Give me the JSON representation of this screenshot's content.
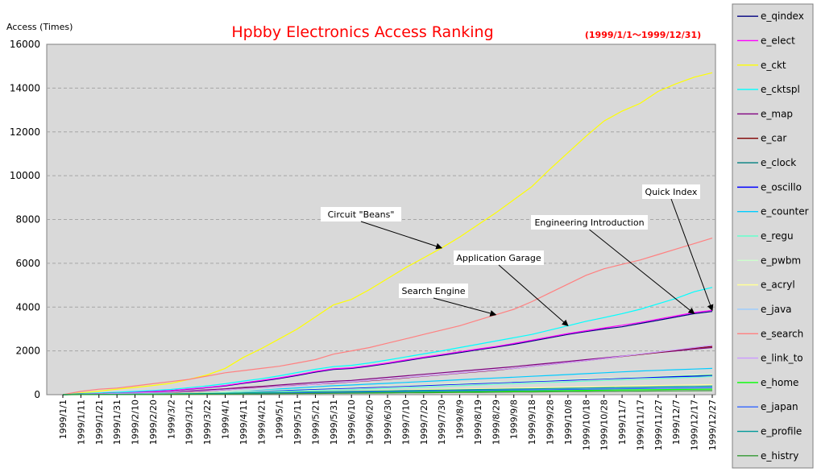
{
  "chart_data": {
    "type": "line",
    "title": "Hpbby Electronics Access Ranking",
    "subtitle": "(1999/1/1～1999/12/31)",
    "ylabel": "Access (Times)",
    "xlabel": "",
    "ylim": [
      0,
      16000
    ],
    "yticks": [
      "0",
      "2000",
      "4000",
      "6000",
      "8000",
      "10000",
      "12000",
      "14000",
      "16000"
    ],
    "grid": true,
    "legend_position": "right",
    "x": [
      "1999/1/1",
      "1999/1/11",
      "1999/1/21",
      "1999/1/31",
      "1999/2/10",
      "1999/2/20",
      "1999/3/2",
      "1999/3/12",
      "1999/3/22",
      "1999/4/1",
      "1999/4/11",
      "1999/4/21",
      "1999/5/1",
      "1999/5/11",
      "1999/5/21",
      "1999/5/31",
      "1999/6/10",
      "1999/6/20",
      "1999/6/30",
      "1999/7/10",
      "1999/7/20",
      "1999/7/30",
      "1999/8/9",
      "1999/8/19",
      "1999/8/29",
      "1999/9/8",
      "1999/9/18",
      "1999/9/28",
      "1999/10/8",
      "1999/10/18",
      "1999/10/28",
      "1999/11/7",
      "1999/11/17",
      "1999/11/27",
      "1999/12/7",
      "1999/12/17",
      "1999/12/27"
    ],
    "series": [
      {
        "name": "e_qindex",
        "color": "#000080",
        "values": [
          0,
          40,
          60,
          80,
          110,
          150,
          190,
          250,
          320,
          400,
          520,
          620,
          740,
          880,
          1030,
          1150,
          1200,
          1300,
          1420,
          1550,
          1680,
          1800,
          1920,
          2050,
          2170,
          2300,
          2450,
          2600,
          2750,
          2880,
          3000,
          3100,
          3250,
          3400,
          3550,
          3700,
          3800
        ]
      },
      {
        "name": "e_elect",
        "color": "#ff00ff",
        "values": [
          0,
          40,
          60,
          80,
          110,
          150,
          190,
          260,
          330,
          420,
          540,
          650,
          770,
          910,
          1060,
          1180,
          1230,
          1330,
          1450,
          1580,
          1710,
          1830,
          1960,
          2080,
          2200,
          2340,
          2490,
          2640,
          2790,
          2920,
          3050,
          3170,
          3300,
          3450,
          3600,
          3750,
          3850
        ]
      },
      {
        "name": "e_ckt",
        "color": "#ffff00",
        "values": [
          0,
          80,
          160,
          250,
          330,
          420,
          520,
          700,
          900,
          1200,
          1700,
          2100,
          2550,
          3000,
          3550,
          4100,
          4350,
          4800,
          5300,
          5800,
          6250,
          6700,
          7200,
          7750,
          8300,
          8900,
          9500,
          10300,
          11050,
          11800,
          12500,
          12950,
          13300,
          13850,
          14200,
          14500,
          14700
        ]
      },
      {
        "name": "e_cktspl",
        "color": "#00ffff",
        "values": [
          0,
          50,
          80,
          110,
          150,
          190,
          240,
          320,
          400,
          500,
          620,
          730,
          860,
          1010,
          1160,
          1280,
          1340,
          1450,
          1580,
          1720,
          1860,
          2000,
          2150,
          2300,
          2450,
          2600,
          2750,
          2950,
          3150,
          3350,
          3520,
          3700,
          3900,
          4150,
          4400,
          4700,
          4900
        ]
      },
      {
        "name": "e_map",
        "color": "#800080",
        "values": [
          0,
          30,
          50,
          70,
          90,
          110,
          140,
          180,
          220,
          270,
          330,
          380,
          440,
          500,
          560,
          610,
          650,
          720,
          790,
          860,
          930,
          1000,
          1070,
          1140,
          1210,
          1280,
          1360,
          1440,
          1520,
          1600,
          1680,
          1760,
          1840,
          1920,
          2000,
          2080,
          2150
        ]
      },
      {
        "name": "e_car",
        "color": "#800000",
        "values": [
          0,
          20,
          35,
          50,
          65,
          80,
          100,
          130,
          170,
          220,
          280,
          330,
          380,
          430,
          480,
          530,
          580,
          640,
          700,
          770,
          840,
          910,
          980,
          1050,
          1120,
          1200,
          1290,
          1380,
          1470,
          1560,
          1650,
          1740,
          1830,
          1930,
          2030,
          2130,
          2200
        ]
      },
      {
        "name": "e_clock",
        "color": "#008080",
        "values": [
          0,
          15,
          25,
          35,
          45,
          55,
          65,
          80,
          100,
          120,
          150,
          170,
          200,
          230,
          260,
          290,
          310,
          340,
          370,
          400,
          430,
          460,
          490,
          520,
          550,
          580,
          610,
          640,
          670,
          700,
          730,
          760,
          790,
          820,
          850,
          880,
          900
        ]
      },
      {
        "name": "e_oscillo",
        "color": "#0000ff",
        "values": [
          0,
          10,
          20,
          30,
          40,
          50,
          60,
          75,
          95,
          115,
          140,
          160,
          190,
          220,
          250,
          280,
          300,
          330,
          360,
          390,
          420,
          450,
          480,
          510,
          540,
          570,
          600,
          630,
          660,
          690,
          720,
          750,
          780,
          800,
          820,
          840,
          850
        ]
      },
      {
        "name": "e_counter",
        "color": "#00ccff",
        "values": [
          0,
          10,
          20,
          30,
          40,
          50,
          60,
          80,
          100,
          130,
          170,
          210,
          260,
          310,
          360,
          410,
          440,
          480,
          520,
          560,
          600,
          640,
          680,
          720,
          760,
          800,
          840,
          880,
          920,
          960,
          1000,
          1040,
          1080,
          1110,
          1140,
          1170,
          1200
        ]
      },
      {
        "name": "e_regu",
        "color": "#66ffcc",
        "values": [
          0,
          10,
          15,
          20,
          30,
          40,
          50,
          60,
          75,
          90,
          110,
          130,
          150,
          170,
          190,
          210,
          230,
          260,
          290,
          320,
          350,
          380,
          410,
          440,
          470,
          500,
          530,
          560,
          590,
          620,
          650,
          680,
          710,
          740,
          770,
          800,
          830
        ]
      },
      {
        "name": "e_pwbm",
        "color": "#ccffcc",
        "values": [
          0,
          15,
          25,
          35,
          45,
          55,
          65,
          85,
          105,
          130,
          160,
          190,
          220,
          250,
          280,
          310,
          330,
          360,
          390,
          420,
          450,
          480,
          510,
          540,
          570,
          600,
          630,
          660,
          690,
          720,
          750,
          780,
          810,
          840,
          870,
          900,
          930
        ]
      },
      {
        "name": "e_acryl",
        "color": "#ffff99",
        "values": [
          0,
          10,
          15,
          20,
          25,
          30,
          35,
          45,
          55,
          65,
          80,
          95,
          110,
          125,
          140,
          155,
          165,
          180,
          195,
          210,
          225,
          240,
          255,
          270,
          285,
          300,
          315,
          330,
          345,
          360,
          375,
          390,
          405,
          420,
          435,
          450,
          460
        ]
      },
      {
        "name": "e_java",
        "color": "#99ccff",
        "values": [
          0,
          8,
          12,
          16,
          20,
          24,
          28,
          36,
          44,
          52,
          64,
          76,
          88,
          100,
          112,
          124,
          132,
          144,
          156,
          168,
          180,
          192,
          204,
          216,
          228,
          240,
          252,
          264,
          276,
          288,
          300,
          312,
          324,
          336,
          348,
          360,
          370
        ]
      },
      {
        "name": "e_search",
        "color": "#ff8080",
        "values": [
          0,
          150,
          250,
          300,
          400,
          500,
          600,
          700,
          850,
          1000,
          1100,
          1200,
          1300,
          1450,
          1600,
          1850,
          2000,
          2150,
          2350,
          2550,
          2750,
          2950,
          3150,
          3400,
          3650,
          3900,
          4250,
          4650,
          5050,
          5450,
          5750,
          5950,
          6150,
          6400,
          6650,
          6900,
          7150
        ]
      },
      {
        "name": "e_link_to",
        "color": "#cc99ff",
        "values": [
          0,
          20,
          40,
          60,
          80,
          100,
          120,
          150,
          180,
          220,
          270,
          320,
          370,
          420,
          480,
          540,
          590,
          650,
          710,
          780,
          850,
          920,
          990,
          1060,
          1130,
          1200,
          1290,
          1380,
          1470,
          1560,
          1650,
          1750,
          1850,
          1950,
          2050,
          2150,
          2250
        ]
      },
      {
        "name": "e_home",
        "color": "#00ff00",
        "values": [
          0,
          5,
          8,
          12,
          16,
          20,
          24,
          30,
          36,
          42,
          50,
          58,
          66,
          74,
          82,
          90,
          96,
          104,
          112,
          120,
          128,
          136,
          144,
          152,
          160,
          168,
          176,
          184,
          192,
          200,
          208,
          216,
          224,
          232,
          240,
          248,
          255
        ]
      },
      {
        "name": "e_japan",
        "color": "#3366ff",
        "values": [
          0,
          6,
          10,
          14,
          18,
          22,
          26,
          34,
          42,
          50,
          60,
          70,
          80,
          90,
          100,
          110,
          118,
          128,
          138,
          148,
          158,
          168,
          178,
          188,
          198,
          208,
          218,
          228,
          238,
          248,
          258,
          268,
          278,
          288,
          298,
          308,
          315
        ]
      },
      {
        "name": "e_profile",
        "color": "#009999",
        "values": [
          0,
          8,
          14,
          20,
          26,
          32,
          38,
          48,
          58,
          68,
          80,
          92,
          104,
          116,
          128,
          140,
          150,
          162,
          174,
          186,
          198,
          210,
          222,
          234,
          246,
          258,
          270,
          282,
          294,
          306,
          318,
          330,
          342,
          354,
          366,
          378,
          390
        ]
      },
      {
        "name": "e_histry",
        "color": "#339933",
        "values": [
          0,
          4,
          6,
          8,
          10,
          12,
          14,
          18,
          22,
          26,
          32,
          38,
          44,
          50,
          56,
          62,
          66,
          72,
          78,
          84,
          90,
          96,
          102,
          108,
          114,
          120,
          126,
          132,
          138,
          144,
          150,
          156,
          162,
          168,
          174,
          180,
          185
        ]
      }
    ],
    "annotations": [
      {
        "text": "Circuit \"Beans\"",
        "target_index": 21
      },
      {
        "text": "Search Engine",
        "target_index": 24
      },
      {
        "text": "Application Garage",
        "target_index": 28
      },
      {
        "text": "Engineering Introduction",
        "target_index": 35
      },
      {
        "text": "Quick Index",
        "target_index": 41
      }
    ]
  }
}
